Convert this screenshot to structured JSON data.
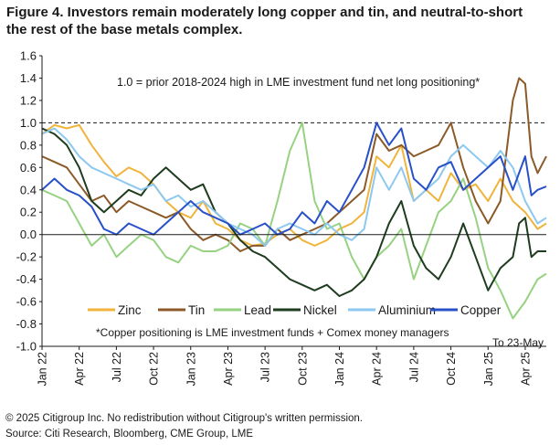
{
  "figure": {
    "title": "Figure 4. Investors remain moderately long copper and tin, and neutral-to-short the rest of the base metals complex.",
    "copyright": "© 2025 Citigroup Inc. No redistribution without Citigroup's written permission.",
    "source": "Source: Citi Research, Bloomberg, CME Group, LME"
  },
  "colors": {
    "Zinc": "#f0b43c",
    "Tin": "#8c5a28",
    "Lead": "#96d282",
    "Nickel": "#1e3c1e",
    "Aluminium": "#8cc8f0",
    "Copper": "#2850c8"
  },
  "chart_data": {
    "type": "line",
    "x_label_unit": "month",
    "x_start": "Jan 22",
    "x_ticks": [
      "Jan 22",
      "Apr 22",
      "Jul 22",
      "Oct 22",
      "Jan 23",
      "Apr 23",
      "Jul 23",
      "Oct 23",
      "Jan 24",
      "Apr 24",
      "Jul 24",
      "Oct 24",
      "Jan 25",
      "Apr 25"
    ],
    "x_tick_months": [
      0,
      3,
      6,
      9,
      12,
      15,
      18,
      21,
      24,
      27,
      30,
      33,
      36,
      39
    ],
    "x_range_months": [
      0,
      40.7
    ],
    "ylim": [
      -1.0,
      1.6
    ],
    "y_ticks": [
      -1.0,
      -0.8,
      -0.6,
      -0.4,
      -0.2,
      0.0,
      0.2,
      0.4,
      0.6,
      0.8,
      1.0,
      1.2,
      1.4,
      1.6
    ],
    "reference_line": 1.0,
    "annotation": "1.0 = prior 2018-2024 high in LME investment fund net long positioning*",
    "footnote": "*Copper positioning is LME investment funds + Comex money managers",
    "end_note": "To 23-May",
    "legend_position": "bottom",
    "series": [
      {
        "name": "Zinc",
        "points": [
          [
            0,
            0.9
          ],
          [
            1,
            0.98
          ],
          [
            2,
            0.95
          ],
          [
            3,
            0.98
          ],
          [
            4,
            0.8
          ],
          [
            5,
            0.65
          ],
          [
            6,
            0.52
          ],
          [
            7,
            0.6
          ],
          [
            8,
            0.55
          ],
          [
            9,
            0.45
          ],
          [
            10,
            0.3
          ],
          [
            11,
            0.2
          ],
          [
            12,
            0.15
          ],
          [
            13,
            0.3
          ],
          [
            14,
            0.1
          ],
          [
            15,
            0.05
          ],
          [
            16,
            -0.05
          ],
          [
            17,
            -0.1
          ],
          [
            18,
            -0.08
          ],
          [
            19,
            0.0
          ],
          [
            20,
            0.05
          ],
          [
            21,
            -0.05
          ],
          [
            22,
            -0.1
          ],
          [
            23,
            -0.05
          ],
          [
            24,
            0.05
          ],
          [
            25,
            0.1
          ],
          [
            26,
            0.2
          ],
          [
            27,
            0.7
          ],
          [
            28,
            0.6
          ],
          [
            29,
            0.8
          ],
          [
            30,
            0.3
          ],
          [
            31,
            0.4
          ],
          [
            32,
            0.3
          ],
          [
            33,
            0.55
          ],
          [
            34,
            0.4
          ],
          [
            35,
            0.45
          ],
          [
            36,
            0.3
          ],
          [
            37,
            0.5
          ],
          [
            38,
            0.3
          ],
          [
            39,
            0.2
          ],
          [
            40,
            0.05
          ],
          [
            40.7,
            0.1
          ]
        ]
      },
      {
        "name": "Tin",
        "points": [
          [
            0,
            0.7
          ],
          [
            1,
            0.65
          ],
          [
            2,
            0.6
          ],
          [
            3,
            0.45
          ],
          [
            4,
            0.3
          ],
          [
            5,
            0.35
          ],
          [
            6,
            0.2
          ],
          [
            7,
            0.3
          ],
          [
            8,
            0.25
          ],
          [
            9,
            0.2
          ],
          [
            10,
            0.15
          ],
          [
            11,
            0.2
          ],
          [
            12,
            0.05
          ],
          [
            13,
            -0.05
          ],
          [
            14,
            0.0
          ],
          [
            15,
            -0.05
          ],
          [
            16,
            -0.15
          ],
          [
            17,
            -0.1
          ],
          [
            18,
            -0.1
          ],
          [
            19,
            0.05
          ],
          [
            20,
            -0.05
          ],
          [
            21,
            0.0
          ],
          [
            22,
            0.05
          ],
          [
            23,
            0.1
          ],
          [
            24,
            0.2
          ],
          [
            25,
            0.3
          ],
          [
            26,
            0.4
          ],
          [
            27,
            0.9
          ],
          [
            28,
            0.75
          ],
          [
            29,
            0.8
          ],
          [
            30,
            0.7
          ],
          [
            31,
            0.75
          ],
          [
            32,
            0.8
          ],
          [
            33,
            1.0
          ],
          [
            34,
            0.6
          ],
          [
            35,
            0.3
          ],
          [
            36,
            0.1
          ],
          [
            37,
            0.3
          ],
          [
            38,
            1.2
          ],
          [
            38.5,
            1.4
          ],
          [
            39,
            1.35
          ],
          [
            39.5,
            0.7
          ],
          [
            40,
            0.55
          ],
          [
            40.7,
            0.7
          ]
        ]
      },
      {
        "name": "Lead",
        "points": [
          [
            0,
            0.4
          ],
          [
            1,
            0.35
          ],
          [
            2,
            0.3
          ],
          [
            3,
            0.1
          ],
          [
            4,
            -0.1
          ],
          [
            5,
            0.0
          ],
          [
            6,
            -0.2
          ],
          [
            7,
            -0.1
          ],
          [
            8,
            0.0
          ],
          [
            9,
            -0.05
          ],
          [
            10,
            -0.2
          ],
          [
            11,
            -0.25
          ],
          [
            12,
            -0.1
          ],
          [
            13,
            -0.15
          ],
          [
            14,
            -0.15
          ],
          [
            15,
            -0.1
          ],
          [
            16,
            0.1
          ],
          [
            17,
            0.05
          ],
          [
            18,
            -0.1
          ],
          [
            19,
            0.3
          ],
          [
            20,
            0.75
          ],
          [
            21,
            1.0
          ],
          [
            22,
            0.3
          ],
          [
            23,
            0.05
          ],
          [
            24,
            0.1
          ],
          [
            25,
            -0.2
          ],
          [
            26,
            -0.4
          ],
          [
            27,
            -0.2
          ],
          [
            28,
            -0.1
          ],
          [
            29,
            0.05
          ],
          [
            30,
            -0.4
          ],
          [
            31,
            -0.1
          ],
          [
            32,
            0.2
          ],
          [
            33,
            0.3
          ],
          [
            34,
            0.5
          ],
          [
            35,
            0.15
          ],
          [
            36,
            -0.3
          ],
          [
            37,
            -0.5
          ],
          [
            38,
            -0.75
          ],
          [
            39,
            -0.6
          ],
          [
            40,
            -0.4
          ],
          [
            40.7,
            -0.35
          ]
        ]
      },
      {
        "name": "Nickel",
        "points": [
          [
            0,
            0.95
          ],
          [
            1,
            0.9
          ],
          [
            2,
            0.8
          ],
          [
            3,
            0.6
          ],
          [
            4,
            0.3
          ],
          [
            5,
            0.2
          ],
          [
            6,
            0.3
          ],
          [
            7,
            0.4
          ],
          [
            8,
            0.35
          ],
          [
            9,
            0.5
          ],
          [
            10,
            0.6
          ],
          [
            11,
            0.5
          ],
          [
            12,
            0.4
          ],
          [
            13,
            0.45
          ],
          [
            14,
            0.2
          ],
          [
            15,
            0.1
          ],
          [
            16,
            -0.05
          ],
          [
            17,
            -0.15
          ],
          [
            18,
            -0.2
          ],
          [
            19,
            -0.3
          ],
          [
            20,
            -0.4
          ],
          [
            21,
            -0.45
          ],
          [
            22,
            -0.5
          ],
          [
            23,
            -0.45
          ],
          [
            24,
            -0.55
          ],
          [
            25,
            -0.5
          ],
          [
            26,
            -0.4
          ],
          [
            27,
            -0.2
          ],
          [
            28,
            0.1
          ],
          [
            29,
            0.3
          ],
          [
            30,
            -0.1
          ],
          [
            31,
            -0.3
          ],
          [
            32,
            -0.4
          ],
          [
            33,
            -0.2
          ],
          [
            34,
            0.1
          ],
          [
            35,
            -0.2
          ],
          [
            36,
            -0.5
          ],
          [
            37,
            -0.3
          ],
          [
            38,
            -0.2
          ],
          [
            38.5,
            0.1
          ],
          [
            39,
            0.15
          ],
          [
            39.5,
            -0.2
          ],
          [
            40,
            -0.15
          ],
          [
            40.7,
            -0.15
          ]
        ]
      },
      {
        "name": "Aluminium",
        "points": [
          [
            0,
            0.9
          ],
          [
            1,
            0.95
          ],
          [
            2,
            0.85
          ],
          [
            3,
            0.7
          ],
          [
            4,
            0.6
          ],
          [
            5,
            0.55
          ],
          [
            6,
            0.5
          ],
          [
            7,
            0.45
          ],
          [
            8,
            0.4
          ],
          [
            9,
            0.45
          ],
          [
            10,
            0.3
          ],
          [
            11,
            0.35
          ],
          [
            12,
            0.25
          ],
          [
            13,
            0.3
          ],
          [
            14,
            0.2
          ],
          [
            15,
            0.1
          ],
          [
            16,
            0.05
          ],
          [
            17,
            0.0
          ],
          [
            18,
            -0.1
          ],
          [
            19,
            0.05
          ],
          [
            20,
            0.1
          ],
          [
            21,
            0.05
          ],
          [
            22,
            0.0
          ],
          [
            23,
            0.1
          ],
          [
            24,
            0.0
          ],
          [
            25,
            -0.05
          ],
          [
            26,
            0.05
          ],
          [
            27,
            0.6
          ],
          [
            28,
            0.4
          ],
          [
            29,
            0.6
          ],
          [
            30,
            0.3
          ],
          [
            31,
            0.4
          ],
          [
            32,
            0.5
          ],
          [
            33,
            0.7
          ],
          [
            34,
            0.8
          ],
          [
            35,
            0.7
          ],
          [
            36,
            0.6
          ],
          [
            37,
            0.75
          ],
          [
            38,
            0.6
          ],
          [
            39,
            0.3
          ],
          [
            40,
            0.1
          ],
          [
            40.7,
            0.15
          ]
        ]
      },
      {
        "name": "Copper",
        "points": [
          [
            0,
            0.4
          ],
          [
            1,
            0.5
          ],
          [
            2,
            0.4
          ],
          [
            3,
            0.35
          ],
          [
            4,
            0.25
          ],
          [
            5,
            0.05
          ],
          [
            6,
            0.0
          ],
          [
            7,
            0.1
          ],
          [
            8,
            0.05
          ],
          [
            9,
            0.0
          ],
          [
            10,
            0.1
          ],
          [
            11,
            0.2
          ],
          [
            12,
            0.3
          ],
          [
            13,
            0.2
          ],
          [
            14,
            0.15
          ],
          [
            15,
            0.1
          ],
          [
            16,
            0.0
          ],
          [
            17,
            0.05
          ],
          [
            18,
            0.1
          ],
          [
            19,
            0.0
          ],
          [
            20,
            0.05
          ],
          [
            21,
            0.2
          ],
          [
            22,
            0.1
          ],
          [
            23,
            0.3
          ],
          [
            24,
            0.2
          ],
          [
            25,
            0.4
          ],
          [
            26,
            0.6
          ],
          [
            27,
            1.0
          ],
          [
            28,
            0.8
          ],
          [
            29,
            0.95
          ],
          [
            30,
            0.5
          ],
          [
            31,
            0.4
          ],
          [
            32,
            0.6
          ],
          [
            33,
            0.65
          ],
          [
            34,
            0.4
          ],
          [
            35,
            0.5
          ],
          [
            36,
            0.6
          ],
          [
            37,
            0.7
          ],
          [
            38,
            0.4
          ],
          [
            39,
            0.7
          ],
          [
            39.5,
            0.35
          ],
          [
            40,
            0.4
          ],
          [
            40.7,
            0.43
          ]
        ]
      }
    ]
  }
}
